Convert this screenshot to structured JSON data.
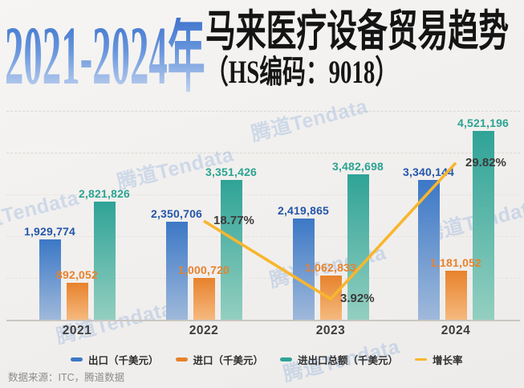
{
  "title": {
    "years": "2021-2024年",
    "main": "马来医疗设备贸易趋势",
    "sub": "（HS编码：9018）"
  },
  "watermark_text": "腾道Tendata",
  "footer": {
    "source": "数据来源：ITC，腾道数据"
  },
  "colors": {
    "title_blue": "#4a7fd0",
    "export_bar": "#3c78c6",
    "import_bar": "#e7832e",
    "total_bar": "#2fa397",
    "growth_line": "#f8b62d",
    "background": "#f2f0ee"
  },
  "chart_data": {
    "type": "bar",
    "note": "grouped bars with overlaid growth-rate line",
    "categories": [
      "2021",
      "2022",
      "2023",
      "2024"
    ],
    "series": [
      {
        "name": "出口（千美元）",
        "type": "bar",
        "color_top": "#3c78c6",
        "color_bottom": "#9fb9da",
        "label_color": "#2456a8",
        "values": [
          1929774,
          2350706,
          2419865,
          3340144
        ],
        "labels": [
          "1,929,774",
          "2,350,706",
          "2,419,865",
          "3,340,144"
        ]
      },
      {
        "name": "进口（千美元）",
        "type": "bar",
        "color_top": "#e7822c",
        "color_bottom": "#f5b97e",
        "label_color": "#e8822d",
        "values": [
          892052,
          1000720,
          1062833,
          1181052
        ],
        "labels": [
          "892,052",
          "1,000,720",
          "1,062,833",
          "1,181,052"
        ]
      },
      {
        "name": "进出口总额（千美元）",
        "type": "bar",
        "color_top": "#2fa397",
        "color_bottom": "#93cfc0",
        "label_color": "#2ba392",
        "values": [
          2821826,
          3351426,
          3482698,
          4521196
        ],
        "labels": [
          "2,821,826",
          "3,351,426",
          "3,482,698",
          "4,521,196"
        ]
      },
      {
        "name": "增长率",
        "type": "line",
        "color": "#f8b62d",
        "label_color": "#3b3b3b",
        "unit": "%",
        "values": [
          null,
          18.77,
          3.92,
          29.82
        ],
        "labels": [
          "",
          "18.77%",
          "3.92%",
          "29.82%"
        ]
      }
    ],
    "ylim": [
      0,
      5000000
    ],
    "grid": "horizontal dashed, every 1,000,000",
    "legend_position": "bottom"
  }
}
